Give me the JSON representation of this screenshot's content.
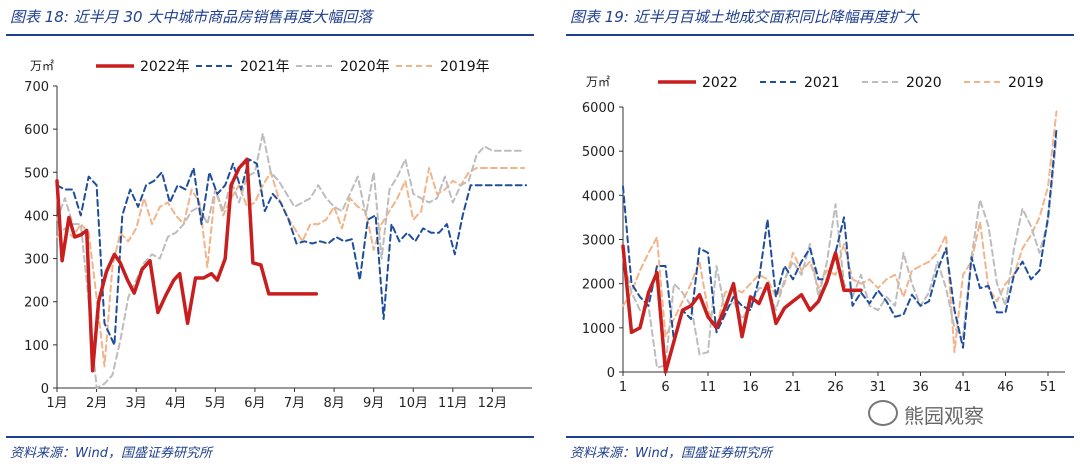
{
  "left": {
    "figure_title": "图表 18:  近半月 30 大中城市商品房销售再度大幅回落",
    "source": "资料来源：Wind，国盛证券研究所"
  },
  "right": {
    "figure_title": "图表 19:  近半月百城土地成交面积同比降幅再度扩大",
    "source": "资料来源：Wind，国盛证券研究所"
  },
  "watermark": "熊园观察",
  "chart_data": [
    {
      "type": "line",
      "unit": "万㎡",
      "ylim": [
        0,
        700
      ],
      "yticks": [
        0,
        100,
        200,
        300,
        400,
        500,
        600,
        700
      ],
      "xlim": [
        1,
        13
      ],
      "xticks": [
        {
          "x": 1,
          "label": "1月"
        },
        {
          "x": 2,
          "label": "2月"
        },
        {
          "x": 3,
          "label": "3月"
        },
        {
          "x": 4,
          "label": "4月"
        },
        {
          "x": 5,
          "label": "5月"
        },
        {
          "x": 6,
          "label": "6月"
        },
        {
          "x": 7,
          "label": "7月"
        },
        {
          "x": 8,
          "label": "8月"
        },
        {
          "x": 9,
          "label": "9月"
        },
        {
          "x": 10,
          "label": "10月"
        },
        {
          "x": 11,
          "label": "11月"
        },
        {
          "x": 12,
          "label": "12月"
        }
      ],
      "legend_position": "top",
      "series": [
        {
          "name": "2022年",
          "color": "#c81e1e",
          "dash": "solid",
          "width": 3.5,
          "x": [
            1.0,
            1.13,
            1.3,
            1.45,
            1.6,
            1.75,
            1.9,
            2.05,
            2.25,
            2.45,
            2.6,
            2.78,
            2.95,
            3.15,
            3.35,
            3.55,
            3.75,
            3.95,
            4.1,
            4.3,
            4.5,
            4.7,
            4.9,
            5.05,
            5.25,
            5.4,
            5.6,
            5.8,
            5.95,
            6.15,
            6.35,
            6.5,
            6.7,
            6.9,
            7.05,
            7.2,
            7.38,
            7.55
          ],
          "y": [
            480,
            295,
            395,
            350,
            355,
            365,
            40,
            200,
            270,
            310,
            290,
            250,
            220,
            275,
            295,
            175,
            215,
            250,
            265,
            150,
            255,
            255,
            265,
            250,
            300,
            470,
            510,
            530,
            290,
            285,
            218,
            218,
            218,
            218,
            218,
            218,
            218,
            218
          ]
        },
        {
          "name": "2021年",
          "color": "#1f4e9c",
          "dash": "6,4",
          "width": 2,
          "x": [
            1.0,
            1.2,
            1.4,
            1.6,
            1.8,
            2.0,
            2.2,
            2.45,
            2.65,
            2.85,
            3.05,
            3.25,
            3.45,
            3.65,
            3.85,
            4.05,
            4.25,
            4.45,
            4.65,
            4.85,
            5.05,
            5.25,
            5.45,
            5.65,
            5.85,
            6.05,
            6.25,
            6.45,
            6.65,
            6.85,
            7.05,
            7.25,
            7.45,
            7.65,
            7.85,
            8.05,
            8.25,
            8.45,
            8.65,
            8.85,
            9.05,
            9.25,
            9.45,
            9.65,
            9.85,
            10.05,
            10.25,
            10.45,
            10.65,
            10.85,
            11.05,
            11.25,
            11.45,
            11.65,
            11.85,
            12.05,
            12.25,
            12.45,
            12.65,
            12.85
          ],
          "y": [
            470,
            460,
            460,
            400,
            490,
            470,
            150,
            100,
            400,
            460,
            420,
            470,
            480,
            500,
            430,
            470,
            460,
            510,
            380,
            500,
            450,
            470,
            520,
            460,
            530,
            520,
            410,
            450,
            430,
            390,
            335,
            340,
            335,
            340,
            335,
            350,
            340,
            345,
            250,
            390,
            400,
            160,
            380,
            340,
            360,
            340,
            370,
            360,
            360,
            380,
            310,
            400,
            470,
            470,
            470,
            470,
            470,
            470,
            470,
            470
          ]
        },
        {
          "name": "2020年",
          "color": "#bdbdbd",
          "dash": "6,4",
          "width": 2,
          "x": [
            1.0,
            1.2,
            1.4,
            1.6,
            1.8,
            2.0,
            2.2,
            2.4,
            2.6,
            2.8,
            3.0,
            3.2,
            3.4,
            3.6,
            3.8,
            4.0,
            4.2,
            4.4,
            4.6,
            4.8,
            5.0,
            5.2,
            5.4,
            5.6,
            5.8,
            6.0,
            6.2,
            6.4,
            6.6,
            6.8,
            7.0,
            7.2,
            7.4,
            7.6,
            7.8,
            8.0,
            8.2,
            8.4,
            8.6,
            8.8,
            9.0,
            9.2,
            9.4,
            9.6,
            9.8,
            10.0,
            10.2,
            10.4,
            10.6,
            10.8,
            11.0,
            11.2,
            11.4,
            11.6,
            11.8,
            12.0,
            12.2,
            12.4,
            12.6,
            12.8
          ],
          "y": [
            390,
            440,
            380,
            380,
            200,
            0,
            10,
            30,
            110,
            210,
            250,
            290,
            310,
            300,
            350,
            360,
            380,
            410,
            420,
            380,
            460,
            410,
            480,
            430,
            490,
            500,
            590,
            500,
            480,
            450,
            420,
            430,
            440,
            470,
            440,
            420,
            410,
            450,
            490,
            400,
            500,
            300,
            460,
            490,
            530,
            450,
            440,
            430,
            440,
            490,
            430,
            470,
            480,
            540,
            560,
            550,
            550,
            550,
            550,
            550
          ]
        },
        {
          "name": "2019年",
          "color": "#f2b48a",
          "dash": "6,4",
          "width": 2,
          "x": [
            1.0,
            1.2,
            1.4,
            1.6,
            1.8,
            2.0,
            2.2,
            2.4,
            2.6,
            2.8,
            3.0,
            3.2,
            3.4,
            3.6,
            3.8,
            4.0,
            4.2,
            4.4,
            4.6,
            4.8,
            5.0,
            5.2,
            5.4,
            5.6,
            5.8,
            6.0,
            6.2,
            6.4,
            6.6,
            6.8,
            7.0,
            7.2,
            7.4,
            7.6,
            7.8,
            8.0,
            8.2,
            8.4,
            8.6,
            8.8,
            9.0,
            9.2,
            9.4,
            9.6,
            9.8,
            10.0,
            10.2,
            10.4,
            10.6,
            10.8,
            11.0,
            11.2,
            11.4,
            11.6,
            11.8,
            12.0,
            12.2,
            12.4,
            12.6,
            12.8
          ],
          "y": [
            350,
            370,
            350,
            380,
            360,
            210,
            50,
            280,
            360,
            340,
            370,
            440,
            380,
            420,
            430,
            400,
            380,
            460,
            430,
            280,
            460,
            400,
            440,
            470,
            420,
            430,
            470,
            500,
            440,
            400,
            370,
            340,
            380,
            380,
            390,
            420,
            370,
            440,
            420,
            410,
            320,
            380,
            410,
            440,
            480,
            390,
            410,
            510,
            450,
            460,
            480,
            470,
            500,
            510,
            510,
            510,
            510,
            510,
            510,
            510
          ]
        }
      ]
    },
    {
      "type": "line",
      "unit": "万㎡",
      "ylim": [
        0,
        6000
      ],
      "yticks": [
        0,
        1000,
        2000,
        3000,
        4000,
        5000,
        6000
      ],
      "xlim": [
        1,
        53
      ],
      "xticks": [
        {
          "x": 1,
          "label": "1"
        },
        {
          "x": 6,
          "label": "6"
        },
        {
          "x": 11,
          "label": "11"
        },
        {
          "x": 16,
          "label": "16"
        },
        {
          "x": 21,
          "label": "21"
        },
        {
          "x": 26,
          "label": "26"
        },
        {
          "x": 31,
          "label": "31"
        },
        {
          "x": 36,
          "label": "36"
        },
        {
          "x": 41,
          "label": "41"
        },
        {
          "x": 46,
          "label": "46"
        },
        {
          "x": 51,
          "label": "51"
        }
      ],
      "legend_position": "top",
      "series": [
        {
          "name": "2022",
          "color": "#c81e1e",
          "dash": "solid",
          "width": 3.5,
          "x": [
            1,
            2,
            3,
            4,
            5,
            6,
            7,
            8,
            9,
            10,
            11,
            12,
            13,
            14,
            15,
            16,
            17,
            18,
            19,
            20,
            21,
            22,
            23,
            24,
            25,
            26,
            27,
            28,
            29
          ],
          "y": [
            2850,
            900,
            1000,
            1800,
            2250,
            0,
            700,
            1400,
            1500,
            1750,
            1250,
            1000,
            1450,
            2000,
            800,
            1700,
            1550,
            2000,
            1100,
            1450,
            1600,
            1750,
            1400,
            1600,
            2050,
            2700,
            1850,
            1850,
            1850
          ]
        },
        {
          "name": "2021",
          "color": "#1f4e9c",
          "dash": "6,4",
          "width": 2,
          "x": [
            1,
            2,
            3,
            4,
            5,
            6,
            7,
            8,
            9,
            10,
            11,
            12,
            13,
            14,
            15,
            16,
            17,
            18,
            19,
            20,
            21,
            22,
            23,
            24,
            25,
            26,
            27,
            28,
            29,
            30,
            31,
            32,
            33,
            34,
            35,
            36,
            37,
            38,
            39,
            40,
            41,
            42,
            43,
            44,
            45,
            46,
            47,
            48,
            49,
            50,
            51,
            52
          ],
          "y": [
            4200,
            2000,
            1700,
            1500,
            2400,
            2400,
            700,
            1400,
            1200,
            2800,
            2700,
            900,
            1300,
            1700,
            1500,
            1400,
            2100,
            3450,
            1700,
            2400,
            2100,
            2500,
            2800,
            2100,
            2100,
            2700,
            3500,
            1500,
            1800,
            1550,
            1850,
            1600,
            1250,
            1300,
            1750,
            1500,
            1600,
            2300,
            2800,
            1400,
            550,
            2600,
            1900,
            1950,
            1350,
            1350,
            2200,
            2500,
            2100,
            2300,
            3500,
            5500
          ]
        },
        {
          "name": "2020",
          "color": "#bdbdbd",
          "dash": "6,4",
          "width": 2,
          "x": [
            1,
            2,
            3,
            4,
            5,
            6,
            7,
            8,
            9,
            10,
            11,
            12,
            13,
            14,
            15,
            16,
            17,
            18,
            19,
            20,
            21,
            22,
            23,
            24,
            25,
            26,
            27,
            28,
            29,
            30,
            31,
            32,
            33,
            34,
            35,
            36,
            37,
            38,
            39,
            40,
            41,
            42,
            43,
            44,
            45,
            46,
            47,
            48,
            49,
            50,
            51,
            52
          ],
          "y": [
            2600,
            1800,
            1400,
            1500,
            100,
            150,
            2000,
            1800,
            1500,
            400,
            450,
            2400,
            1400,
            1600,
            1200,
            1500,
            1900,
            1900,
            1400,
            2100,
            2500,
            2200,
            2900,
            1700,
            2500,
            3800,
            2000,
            1700,
            2200,
            1500,
            1400,
            1700,
            1500,
            2700,
            2000,
            1500,
            1800,
            2500,
            1900,
            1000,
            800,
            2600,
            3900,
            3300,
            2000,
            1500,
            2800,
            3700,
            3300,
            2700,
            3400,
            5300
          ]
        },
        {
          "name": "2019",
          "color": "#f2b48a",
          "dash": "6,4",
          "width": 2,
          "x": [
            1,
            2,
            3,
            4,
            5,
            6,
            7,
            8,
            9,
            10,
            11,
            12,
            13,
            14,
            15,
            16,
            17,
            18,
            19,
            20,
            21,
            22,
            23,
            24,
            25,
            26,
            27,
            28,
            29,
            30,
            31,
            32,
            33,
            34,
            35,
            36,
            37,
            38,
            39,
            40,
            41,
            42,
            43,
            44,
            45,
            46,
            47,
            48,
            49,
            50,
            51,
            52
          ],
          "y": [
            1500,
            1800,
            2300,
            2700,
            3050,
            800,
            1200,
            1600,
            2000,
            2500,
            1400,
            1000,
            1800,
            1900,
            1800,
            2000,
            2200,
            2100,
            1700,
            2000,
            2700,
            2300,
            2500,
            1900,
            2300,
            2200,
            2900,
            2100,
            2000,
            2100,
            1900,
            2100,
            2200,
            1700,
            2300,
            2400,
            2500,
            2700,
            3100,
            450,
            2200,
            2500,
            3400,
            1900,
            1600,
            2000,
            2200,
            2800,
            3100,
            3500,
            4200,
            5900
          ]
        }
      ]
    }
  ]
}
